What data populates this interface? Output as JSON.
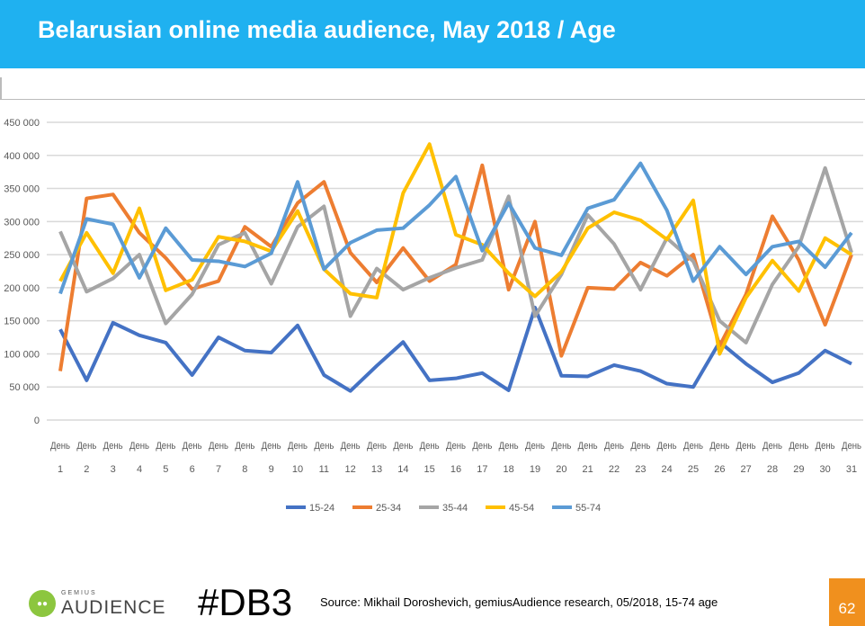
{
  "header": {
    "title": "Belarusian online media audience, May 2018 / Age"
  },
  "footer": {
    "logo_small": "GEMIUS",
    "logo_big": "AUDIENCE",
    "tag": "#DB3",
    "source": "Source: Mikhail Doroshevich, gemiusAudience research,  05/2018, 15-74 age",
    "page_number": "62"
  },
  "chart_data": {
    "type": "line",
    "title": "",
    "x_prefix": "День",
    "x": [
      1,
      2,
      3,
      4,
      5,
      6,
      7,
      8,
      9,
      10,
      11,
      12,
      13,
      14,
      15,
      16,
      17,
      18,
      19,
      20,
      21,
      22,
      23,
      24,
      25,
      26,
      27,
      28,
      29,
      30,
      31
    ],
    "ylim": [
      0,
      450000
    ],
    "yticks": [
      "0",
      "50 000",
      "100 000",
      "150 000",
      "200 000",
      "250 000",
      "300 000",
      "350 000",
      "400 000",
      "450 000"
    ],
    "grid": true,
    "legend": "bottom",
    "series": [
      {
        "name": "15-24",
        "color": "#4472c4",
        "values": [
          137000,
          60000,
          147000,
          128000,
          117000,
          68000,
          125000,
          105000,
          102000,
          143000,
          68000,
          44000,
          82000,
          118000,
          60000,
          63000,
          71000,
          45000,
          170000,
          67000,
          66000,
          83000,
          74000,
          55000,
          50000,
          118000,
          85000,
          57000,
          71000,
          105000,
          85000
        ]
      },
      {
        "name": "25-34",
        "color": "#ed7d31",
        "values": [
          74000,
          335000,
          341000,
          283000,
          245000,
          198000,
          210000,
          292000,
          262000,
          328000,
          360000,
          253000,
          208000,
          260000,
          210000,
          235000,
          385000,
          197000,
          300000,
          97000,
          200000,
          198000,
          238000,
          218000,
          250000,
          112000,
          190000,
          308000,
          242000,
          144000,
          250000
        ]
      },
      {
        "name": "35-44",
        "color": "#a5a5a5",
        "values": [
          285000,
          194000,
          214000,
          250000,
          146000,
          190000,
          265000,
          283000,
          206000,
          292000,
          323000,
          157000,
          229000,
          197000,
          215000,
          230000,
          242000,
          338000,
          157000,
          220000,
          310000,
          266000,
          197000,
          275000,
          240000,
          150000,
          117000,
          205000,
          262000,
          381000,
          253000
        ]
      },
      {
        "name": "45-54",
        "color": "#ffc000",
        "values": [
          210000,
          283000,
          222000,
          320000,
          196000,
          212000,
          277000,
          270000,
          255000,
          316000,
          228000,
          191000,
          185000,
          343000,
          417000,
          280000,
          265000,
          222000,
          187000,
          224000,
          290000,
          314000,
          302000,
          273000,
          332000,
          100000,
          185000,
          241000,
          195000,
          275000,
          250000
        ]
      },
      {
        "name": "55-74",
        "color": "#5b9bd5",
        "values": [
          191000,
          304000,
          296000,
          215000,
          290000,
          242000,
          240000,
          232000,
          252000,
          360000,
          228000,
          268000,
          287000,
          290000,
          325000,
          368000,
          256000,
          328000,
          260000,
          249000,
          320000,
          333000,
          388000,
          317000,
          210000,
          262000,
          220000,
          262000,
          270000,
          231000,
          283000
        ]
      }
    ]
  }
}
